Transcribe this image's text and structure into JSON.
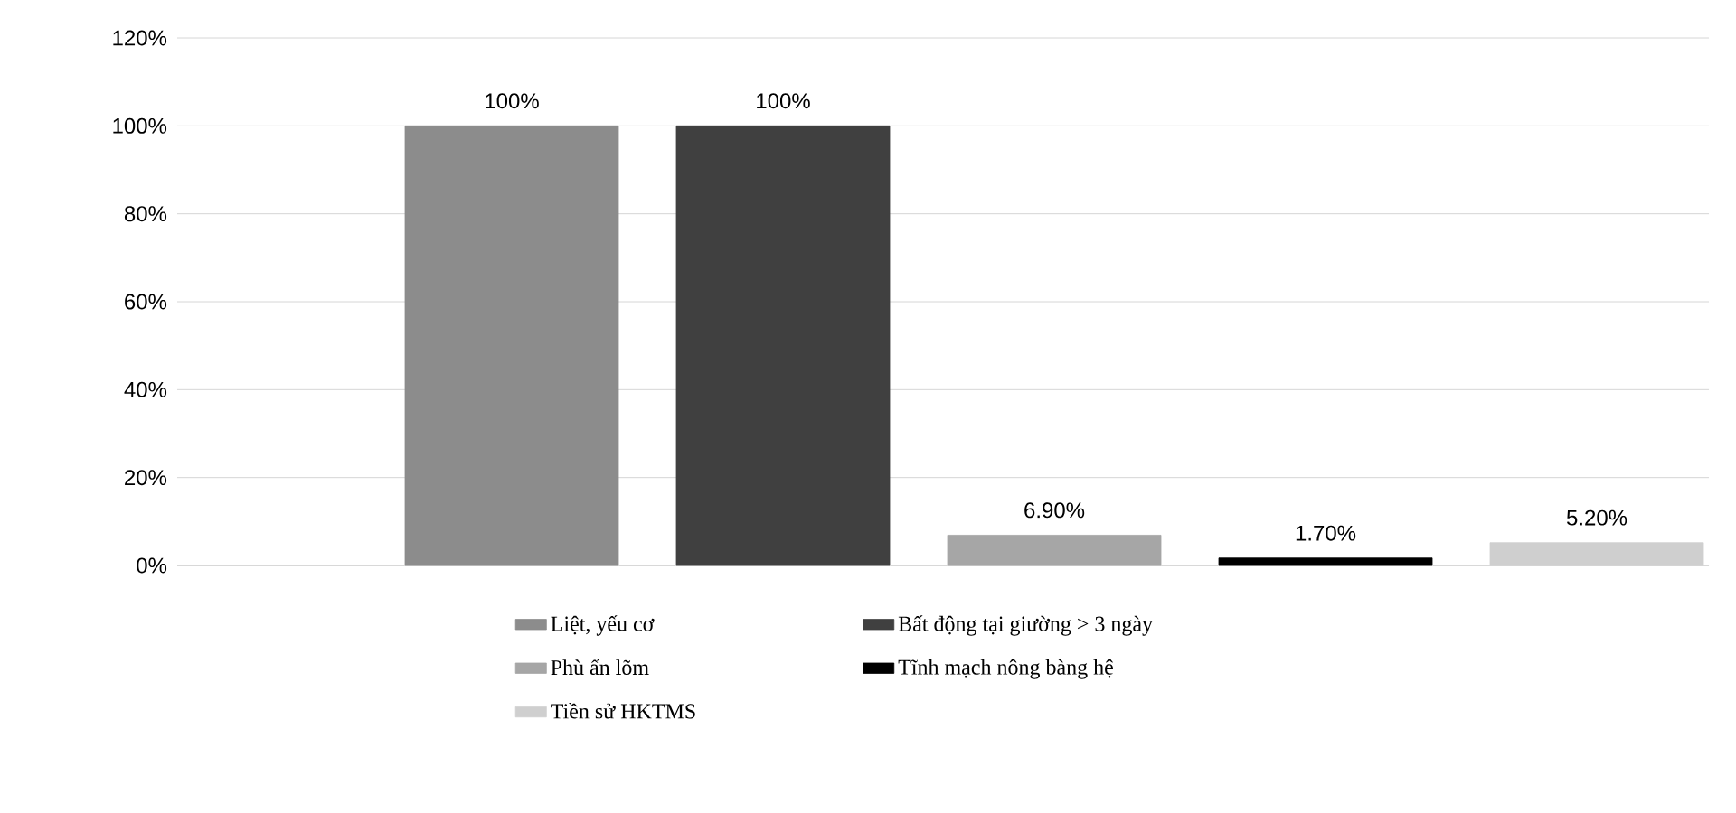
{
  "chart_data": {
    "type": "bar",
    "categories": [
      null
    ],
    "series": [
      {
        "name": "Liệt, yếu cơ",
        "color": "#8c8c8c",
        "values": [
          100
        ],
        "value_labels": [
          "100%"
        ]
      },
      {
        "name": "Bất động tại giường > 3 ngày",
        "color": "#404040",
        "values": [
          100
        ],
        "value_labels": [
          "100%"
        ]
      },
      {
        "name": "Phù ấn lõm",
        "color": "#a6a6a6",
        "values": [
          6.9
        ],
        "value_labels": [
          "6.90%"
        ]
      },
      {
        "name": "Tĩnh mạch nông bàng hệ",
        "color": "#000000",
        "values": [
          1.7
        ],
        "value_labels": [
          "1.70%"
        ]
      },
      {
        "name": "Tiền sử HKTMS",
        "color": "#cfcfcf",
        "values": [
          5.2
        ],
        "value_labels": [
          "5.20%"
        ]
      }
    ],
    "ylim": [
      0,
      120
    ],
    "yticks": [
      {
        "value": 0,
        "label": "0%"
      },
      {
        "value": 20,
        "label": "20%"
      },
      {
        "value": 40,
        "label": "40%"
      },
      {
        "value": 60,
        "label": "60%"
      },
      {
        "value": 80,
        "label": "80%"
      },
      {
        "value": 100,
        "label": "100%"
      },
      {
        "value": 120,
        "label": "120%"
      }
    ],
    "grid": "y",
    "legend": "bottom"
  }
}
